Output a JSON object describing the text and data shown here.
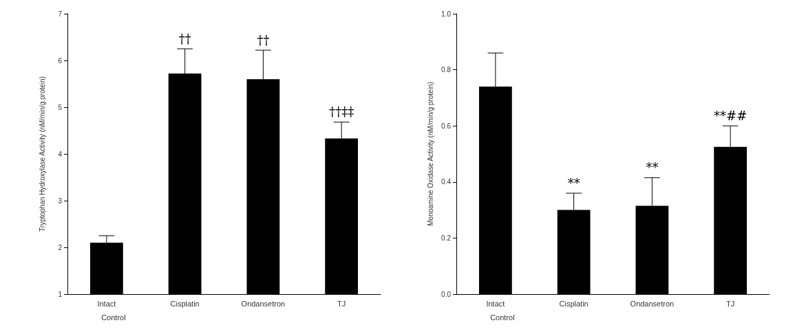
{
  "chart_data": [
    {
      "type": "bar",
      "ylabel": "Tryptophan Hydroxylase Activity (nM/min/g protein)",
      "xlabel": "Control",
      "categories": [
        "Intact",
        "Cisplatin",
        "Ondansetron",
        "TJ"
      ],
      "values": [
        2.1,
        5.72,
        5.6,
        4.33
      ],
      "color": "#000000",
      "errors": [
        [
          2.1,
          2.25
        ],
        [
          5.72,
          6.25
        ],
        [
          5.6,
          6.22
        ],
        [
          4.33,
          4.68
        ]
      ],
      "ylim": [
        1,
        7
      ],
      "yticks": [
        1,
        2,
        3,
        4,
        5,
        6,
        7
      ],
      "annotations": [
        {
          "text": "††",
          "x": "Cisplatin",
          "y": 6.25
        },
        {
          "text": "††",
          "x": "Ondansetron",
          "y": 6.22
        },
        {
          "text": "††‡‡",
          "x": "TJ",
          "y": 4.68
        }
      ]
    },
    {
      "type": "bar",
      "ylabel": "Monoamine Oxidase Activity (nM/min/g protein)",
      "xlabel": "Control",
      "categories": [
        "Intact",
        "Cisplatin",
        "Ondansetron",
        "TJ"
      ],
      "values": [
        0.74,
        0.3,
        0.315,
        0.525
      ],
      "color": "#000000",
      "errors": [
        [
          0.74,
          0.86
        ],
        [
          0.3,
          0.36
        ],
        [
          0.315,
          0.415
        ],
        [
          0.525,
          0.6
        ]
      ],
      "ylim": [
        0,
        1
      ],
      "yticks": [
        {
          "value": 0,
          "label": "0.0"
        },
        0.2,
        0.4,
        0.6,
        0.8,
        {
          "value": 1,
          "label": "1.0"
        }
      ],
      "annotations": [
        {
          "text": "**",
          "x": "Cisplatin",
          "y": 0.36
        },
        {
          "text": "**",
          "x": "Ondansetron",
          "y": 0.415
        },
        {
          "text": "**##",
          "x": "TJ",
          "y": 0.6
        }
      ]
    }
  ]
}
